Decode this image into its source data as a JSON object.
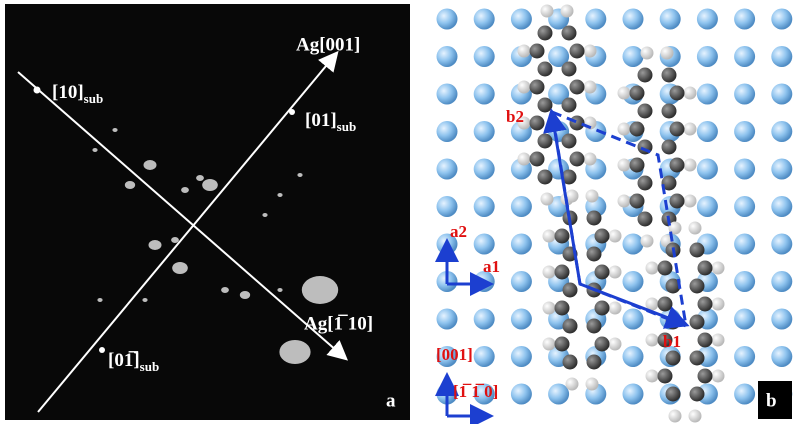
{
  "panel_a": {
    "label": "a",
    "directions": {
      "ag_001": "Ag[001]",
      "ag_110": "Ag[1̅ 10]"
    },
    "spots": [
      {
        "text": "[10]",
        "subscript": "sub"
      },
      {
        "text": "[01]",
        "subscript": "sub"
      },
      {
        "text": "[01̅]",
        "subscript": "sub"
      }
    ]
  },
  "panel_b": {
    "label": "b",
    "lattice": {
      "a1": "a1",
      "a2": "a2",
      "b1": "b1",
      "b2": "b2"
    },
    "directions": {
      "vertical": "[001]",
      "horizontal": "[1̅ 1̅ 0]"
    }
  }
}
